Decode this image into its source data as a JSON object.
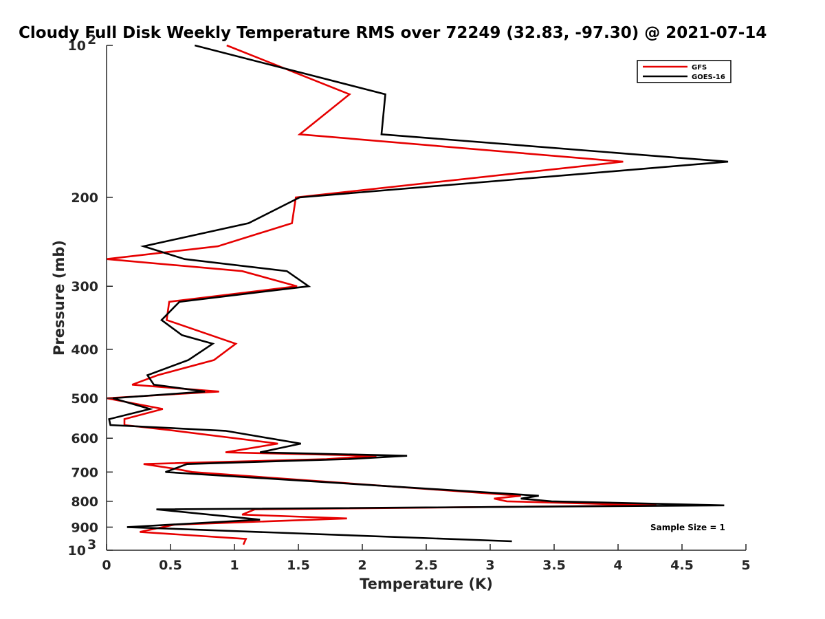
{
  "chart_data": {
    "type": "line",
    "title": "Cloudy Full Disk Weekly Temperature RMS over 72249 (32.83, -97.30) @ 2021-07-14",
    "xlabel": "Temperature (K)",
    "ylabel": "Pressure (mb)",
    "xlim": [
      0,
      5
    ],
    "ylim": [
      100,
      1000
    ],
    "y_scale": "log",
    "y_reversed": true,
    "x_ticks": [
      "0",
      "0.5",
      "1",
      "1.5",
      "2",
      "2.5",
      "3",
      "3.5",
      "4",
      "4.5",
      "5"
    ],
    "y_tick_labels": [
      {
        "value": 100,
        "base": "10",
        "exp": "2"
      },
      {
        "value": 200,
        "base": "200",
        "exp": ""
      },
      {
        "value": 300,
        "base": "300",
        "exp": ""
      },
      {
        "value": 400,
        "base": "400",
        "exp": ""
      },
      {
        "value": 500,
        "base": "500",
        "exp": ""
      },
      {
        "value": 600,
        "base": "600",
        "exp": ""
      },
      {
        "value": 700,
        "base": "700",
        "exp": ""
      },
      {
        "value": 800,
        "base": "800",
        "exp": ""
      },
      {
        "value": 900,
        "base": "900",
        "exp": ""
      },
      {
        "value": 1000,
        "base": "10",
        "exp": "3"
      }
    ],
    "grid": false,
    "legend_position": "top-right",
    "annotation": "Sample Size = 1",
    "series": [
      {
        "name": "GFS",
        "color": "#e60000",
        "points": [
          [
            0.94,
            100
          ],
          [
            1.9,
            125
          ],
          [
            1.51,
            150
          ],
          [
            4.04,
            170
          ],
          [
            1.48,
            200
          ],
          [
            1.45,
            225
          ],
          [
            0.87,
            250
          ],
          [
            0,
            265
          ],
          [
            1.06,
            280
          ],
          [
            1.49,
            300
          ],
          [
            0.49,
            322
          ],
          [
            0.47,
            350
          ],
          [
            1.01,
            390
          ],
          [
            0.84,
            420
          ],
          [
            0.4,
            450
          ],
          [
            0.2,
            470
          ],
          [
            0.88,
            485
          ],
          [
            0,
            500
          ],
          [
            0.44,
            525
          ],
          [
            0.14,
            550
          ],
          [
            0.14,
            565
          ],
          [
            0.54,
            580
          ],
          [
            1.34,
            615
          ],
          [
            0.93,
            640
          ],
          [
            2.11,
            650
          ],
          [
            1.72,
            660
          ],
          [
            0.29,
            675
          ],
          [
            0.54,
            690
          ],
          [
            0.67,
            700
          ],
          [
            3.24,
            780
          ],
          [
            3.03,
            790
          ],
          [
            3.13,
            800
          ],
          [
            4.3,
            815
          ],
          [
            1.16,
            830
          ],
          [
            1.06,
            850
          ],
          [
            1.88,
            865
          ],
          [
            0.53,
            890
          ],
          [
            0.26,
            920
          ],
          [
            1.09,
            950
          ],
          [
            1.07,
            975
          ]
        ]
      },
      {
        "name": "GOES-16",
        "color": "#000000",
        "points": [
          [
            0.69,
            100
          ],
          [
            2.18,
            125
          ],
          [
            2.15,
            150
          ],
          [
            4.86,
            170
          ],
          [
            1.51,
            200
          ],
          [
            1.11,
            225
          ],
          [
            0.29,
            250
          ],
          [
            0.61,
            265
          ],
          [
            1.41,
            280
          ],
          [
            1.58,
            300
          ],
          [
            0.57,
            322
          ],
          [
            0.43,
            350
          ],
          [
            0.59,
            375
          ],
          [
            0.83,
            390
          ],
          [
            0.64,
            420
          ],
          [
            0.32,
            450
          ],
          [
            0.37,
            470
          ],
          [
            0.77,
            485
          ],
          [
            0.05,
            500
          ],
          [
            0.34,
            525
          ],
          [
            0.02,
            550
          ],
          [
            0.03,
            565
          ],
          [
            0.93,
            580
          ],
          [
            1.52,
            615
          ],
          [
            1.2,
            640
          ],
          [
            2.35,
            650
          ],
          [
            1.89,
            660
          ],
          [
            0.63,
            675
          ],
          [
            0.46,
            700
          ],
          [
            3.38,
            780
          ],
          [
            3.24,
            790
          ],
          [
            3.48,
            800
          ],
          [
            4.83,
            815
          ],
          [
            0.39,
            830
          ],
          [
            1.2,
            870
          ],
          [
            0.16,
            900
          ],
          [
            3.17,
            960
          ]
        ]
      }
    ]
  }
}
